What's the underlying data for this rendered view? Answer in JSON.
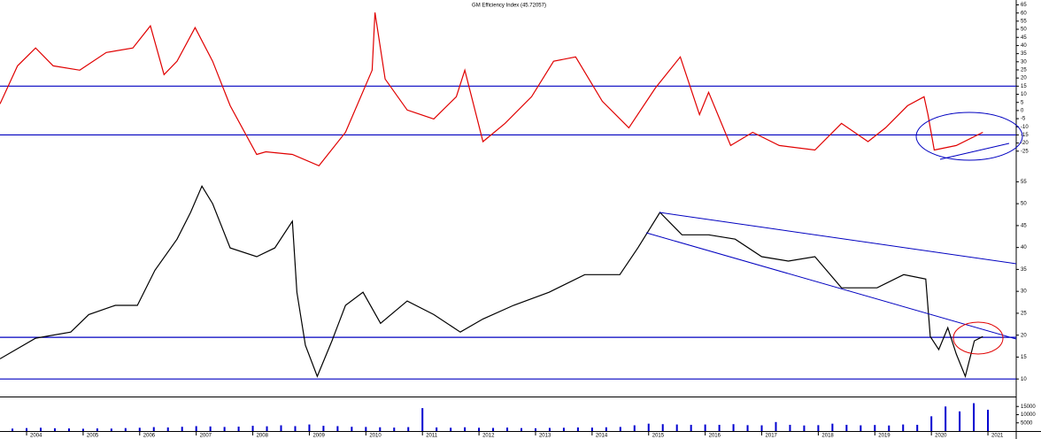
{
  "chart_data": [
    {
      "type": "line",
      "title": "GM Efficiency Index (45.72057)",
      "color": "#e00000",
      "hline_color": "#0000c0",
      "xlim": [
        2003.53,
        2021.5
      ],
      "ylim": [
        -36,
        68
      ],
      "yticks": [
        65,
        60,
        55,
        50,
        45,
        40,
        35,
        30,
        25,
        20,
        15,
        10,
        5,
        0,
        -5,
        -10,
        -15,
        -20,
        -25
      ],
      "hlines": [
        15,
        -15
      ],
      "x": [
        2003.53,
        2003.84,
        2004.16,
        2004.47,
        2004.94,
        2005.41,
        2005.88,
        2006.19,
        2006.43,
        2006.66,
        2006.98,
        2007.29,
        2007.6,
        2008.07,
        2008.23,
        2008.7,
        2009.17,
        2009.64,
        2010.11,
        2010.16,
        2010.34,
        2010.73,
        2011.2,
        2011.6,
        2011.75,
        2012.07,
        2012.46,
        2012.93,
        2013.32,
        2013.71,
        2014.18,
        2014.65,
        2015.12,
        2015.56,
        2015.9,
        2016.06,
        2016.45,
        2016.84,
        2017.31,
        2017.94,
        2018.41,
        2018.88,
        2019.19,
        2019.58,
        2019.87,
        2019.94,
        2020.05,
        2020.44,
        2020.91
      ],
      "values": [
        4.1,
        27.5,
        38.5,
        27.5,
        24.8,
        35.7,
        38.5,
        52.1,
        22.1,
        30.3,
        51,
        30.3,
        3,
        -27,
        -25.4,
        -27,
        -34,
        -13.4,
        24.8,
        60.3,
        19.4,
        0.3,
        -5.2,
        8.5,
        24.8,
        -19.1,
        -7.9,
        8.5,
        30.3,
        33,
        5.7,
        -10.6,
        13.9,
        33,
        -2.5,
        11.2,
        -21.5,
        -13.4,
        -21.5,
        -24.3,
        -7.9,
        -19.1,
        -10.6,
        3,
        8.5,
        -2.5,
        -24.3,
        -21.5,
        -13.4
      ]
    },
    {
      "type": "line",
      "color": "#000000",
      "hline_color": "#0000c0",
      "xlim": [
        2003.53,
        2021.5
      ],
      "ylim": [
        6,
        57.5
      ],
      "yticks": [
        55,
        50,
        45,
        40,
        35,
        30,
        25,
        20,
        15,
        10
      ],
      "hlines": [
        19.5,
        10
      ],
      "x": [
        2003.53,
        2004.16,
        2004.78,
        2005.1,
        2005.57,
        2005.96,
        2006.27,
        2006.66,
        2006.9,
        2007.1,
        2007.29,
        2007.6,
        2008.07,
        2008.39,
        2008.7,
        2008.78,
        2008.93,
        2009.14,
        2009.4,
        2009.64,
        2009.95,
        2010.26,
        2010.73,
        2011.2,
        2011.67,
        2012.07,
        2012.61,
        2013.24,
        2013.87,
        2014.49,
        2014.81,
        2015.2,
        2015.59,
        2016.06,
        2016.53,
        2017.0,
        2017.47,
        2017.94,
        2018.41,
        2019.04,
        2019.51,
        2019.9,
        2019.98,
        2020.13,
        2020.29,
        2020.44,
        2020.6,
        2020.76,
        2020.91
      ],
      "values": [
        14.6,
        19.3,
        20.7,
        24.7,
        26.8,
        26.8,
        34.8,
        41.9,
        48,
        54,
        50,
        39.9,
        37.9,
        39.9,
        46,
        29.8,
        17.7,
        10.6,
        18.7,
        26.8,
        29.8,
        22.7,
        27.8,
        24.7,
        20.7,
        23.7,
        26.8,
        29.8,
        33.8,
        33.8,
        39.9,
        48,
        42.9,
        42.9,
        41.9,
        37.9,
        36.9,
        37.9,
        30.8,
        30.8,
        33.8,
        32.8,
        19.7,
        16.7,
        21.7,
        15.7,
        10.6,
        18.7,
        19.7
      ]
    },
    {
      "type": "bar",
      "color": "#0000d0",
      "xlim": [
        2003.53,
        2021.5
      ],
      "ylim": [
        0,
        20000
      ],
      "yticks": [
        15000,
        10000,
        5000
      ],
      "xticks": [
        2004,
        2005,
        2006,
        2007,
        2008,
        2009,
        2010,
        2011,
        2012,
        2013,
        2014,
        2015,
        2016,
        2017,
        2018,
        2019,
        2020,
        2021
      ],
      "x": [
        2003.75,
        2004.0,
        2004.25,
        2004.5,
        2004.75,
        2005.0,
        2005.25,
        2005.5,
        2005.75,
        2006.0,
        2006.25,
        2006.5,
        2006.75,
        2007.0,
        2007.25,
        2007.5,
        2007.75,
        2008.0,
        2008.25,
        2008.5,
        2008.75,
        2009.0,
        2009.25,
        2009.5,
        2009.75,
        2010.0,
        2010.25,
        2010.5,
        2010.75,
        2011.0,
        2011.25,
        2011.5,
        2011.75,
        2012.0,
        2012.25,
        2012.5,
        2012.75,
        2013.0,
        2013.25,
        2013.5,
        2013.75,
        2014.0,
        2014.25,
        2014.5,
        2014.75,
        2015.0,
        2015.25,
        2015.5,
        2015.75,
        2016.0,
        2016.25,
        2016.5,
        2016.75,
        2017.0,
        2017.25,
        2017.5,
        2017.75,
        2018.0,
        2018.25,
        2018.5,
        2018.75,
        2019.0,
        2019.25,
        2019.5,
        2019.75,
        2020.0,
        2020.25,
        2020.5,
        2020.75,
        2021.0
      ],
      "values": [
        1500,
        1800,
        2000,
        1700,
        1600,
        1400,
        1600,
        1500,
        1800,
        2000,
        2400,
        2200,
        2600,
        3000,
        2800,
        2500,
        2700,
        3200,
        2900,
        3500,
        3000,
        4000,
        3200,
        3000,
        2600,
        2500,
        2300,
        2100,
        2400,
        14000,
        2200,
        2000,
        2300,
        2000,
        1900,
        2100,
        1800,
        1700,
        1900,
        2000,
        2200,
        2100,
        2300,
        2500,
        3500,
        4500,
        4200,
        4000,
        3800,
        4000,
        3800,
        4200,
        3600,
        3500,
        5500,
        3800,
        3400,
        3600,
        4500,
        3800,
        3500,
        3700,
        3400,
        4000,
        3800,
        9000,
        15000,
        12000,
        17000,
        13000
      ]
    }
  ]
}
